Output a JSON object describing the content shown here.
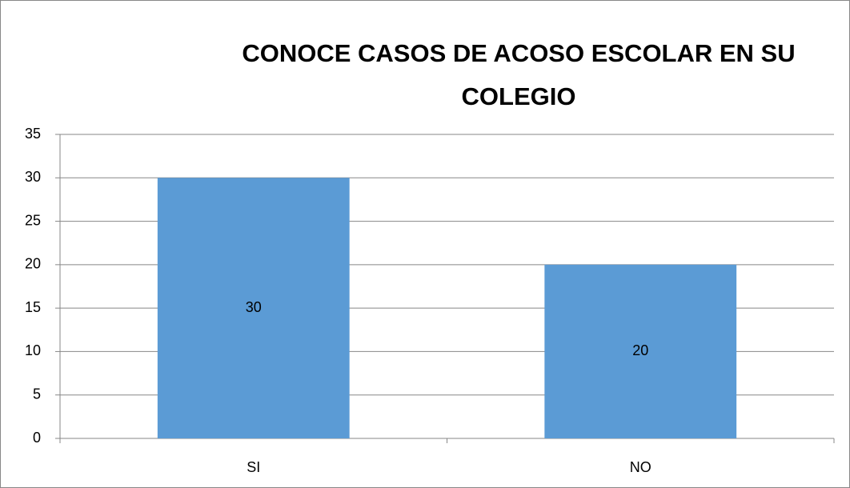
{
  "chart_data": {
    "type": "bar",
    "title": "CONOCE CASOS DE ACOSO ESCOLAR EN SU COLEGIO",
    "categories": [
      "SI",
      "NO"
    ],
    "values": [
      30,
      20
    ],
    "color": "#5b9bd5",
    "ylim": [
      0,
      35
    ],
    "yticks": [
      0,
      5,
      10,
      15,
      20,
      25,
      30,
      35
    ],
    "grid": true,
    "data_labels": true
  }
}
